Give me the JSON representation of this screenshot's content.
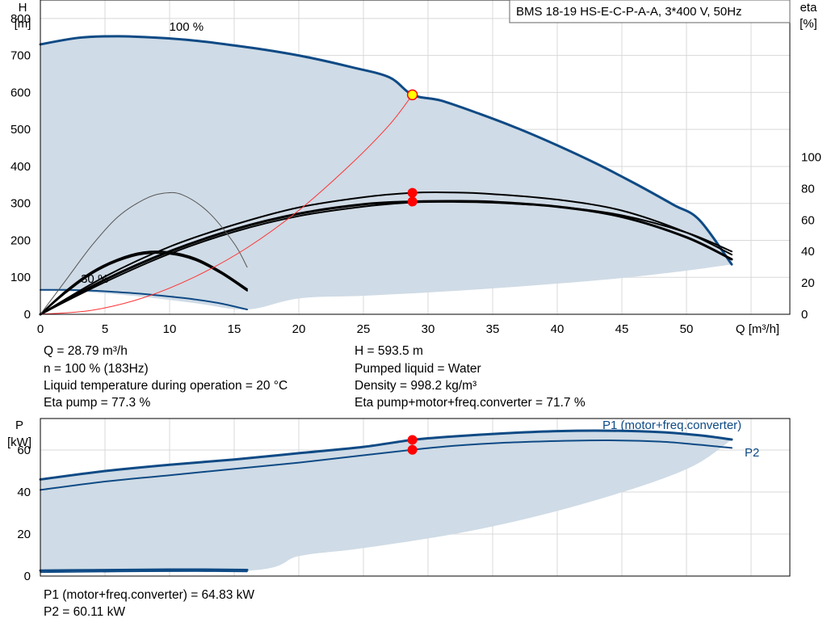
{
  "chart_data": {
    "type": "line",
    "title": "BMS 18-19 HS-E-C-P-A-A, 3*400 V, 50Hz",
    "colors": {
      "area": "#cfdbe6",
      "curve_blue": "#0e4a85",
      "curve_black": "#000000",
      "system_curve": "#ff3333",
      "marker": "#ff0000",
      "duty_point": "#ffff00",
      "grid": "#d8d8d8"
    },
    "head_plot": {
      "x_label": "Q [m³/h]",
      "y_label": "H",
      "y_unit": "[m]",
      "y2_label": "eta",
      "y2_unit": "[%]",
      "x_range": [
        0,
        58
      ],
      "y_range": [
        0,
        850
      ],
      "y2_range": [
        0,
        200
      ],
      "x_ticks": [
        "0",
        "5",
        "10",
        "15",
        "20",
        "25",
        "30",
        "35",
        "40",
        "45",
        "50"
      ],
      "y_ticks": [
        "0",
        "100",
        "200",
        "300",
        "400",
        "500",
        "600",
        "700",
        "800"
      ],
      "y2_ticks": [
        "0",
        "20",
        "40",
        "60",
        "80",
        "100"
      ],
      "curve_labels": [
        {
          "text": "100 %",
          "x": 11.3,
          "y": 767
        },
        {
          "text": "30 %",
          "x": 4.2,
          "y": 85
        }
      ],
      "envelope": {
        "upper": [
          [
            0,
            730
          ],
          [
            3,
            748
          ],
          [
            6,
            752
          ],
          [
            9,
            748
          ],
          [
            12,
            740
          ],
          [
            15,
            727
          ],
          [
            18,
            712
          ],
          [
            21,
            693
          ],
          [
            24,
            669
          ],
          [
            27,
            641
          ],
          [
            28.79,
            593.5
          ],
          [
            31,
            578
          ],
          [
            34,
            542
          ],
          [
            37,
            502
          ],
          [
            40,
            457
          ],
          [
            43,
            408
          ],
          [
            46,
            354
          ],
          [
            49,
            296
          ],
          [
            51,
            255
          ],
          [
            53.5,
            135
          ]
        ],
        "lower": [
          [
            53.5,
            135
          ],
          [
            50,
            118
          ],
          [
            45,
            98
          ],
          [
            40,
            83
          ],
          [
            35,
            70
          ],
          [
            30,
            59
          ],
          [
            25,
            50
          ],
          [
            20,
            43
          ],
          [
            16,
            13
          ],
          [
            12,
            30
          ],
          [
            8,
            47
          ],
          [
            4,
            59
          ],
          [
            0,
            64
          ]
        ]
      },
      "series": [
        {
          "name": "H 100 %",
          "axis": "left",
          "color": "#0e4a85",
          "width": 3,
          "points": [
            [
              0,
              730
            ],
            [
              3,
              748
            ],
            [
              6,
              752
            ],
            [
              9,
              748
            ],
            [
              12,
              740
            ],
            [
              15,
              727
            ],
            [
              18,
              712
            ],
            [
              21,
              693
            ],
            [
              24,
              669
            ],
            [
              27,
              641
            ],
            [
              28.79,
              593.5
            ],
            [
              31,
              578
            ],
            [
              34,
              542
            ],
            [
              37,
              502
            ],
            [
              40,
              457
            ],
            [
              43,
              408
            ],
            [
              46,
              354
            ],
            [
              49,
              296
            ],
            [
              51,
              255
            ],
            [
              53.5,
              135
            ]
          ]
        },
        {
          "name": "H 30 %",
          "axis": "left",
          "color": "#0e4a85",
          "width": 2,
          "points": [
            [
              0,
              66
            ],
            [
              2,
              66
            ],
            [
              4,
              64
            ],
            [
              6,
              60
            ],
            [
              8,
              55
            ],
            [
              10,
              48
            ],
            [
              12,
              40
            ],
            [
              14,
              29
            ],
            [
              16,
              13
            ]
          ]
        },
        {
          "name": "eta 100 % a",
          "axis": "right",
          "color": "#000000",
          "width": 2,
          "points": [
            [
              0,
              0
            ],
            [
              5,
              24
            ],
            [
              10,
              43
            ],
            [
              15,
              57
            ],
            [
              20,
              68
            ],
            [
              25,
              74.5
            ],
            [
              28.79,
              77.3
            ],
            [
              32,
              77.5
            ],
            [
              35,
              76.5
            ],
            [
              40,
              73
            ],
            [
              45,
              66
            ],
            [
              50,
              52
            ],
            [
              53.5,
              38
            ]
          ]
        },
        {
          "name": "eta 100 % b",
          "axis": "right",
          "color": "#000000",
          "width": 3,
          "points": [
            [
              0,
              0
            ],
            [
              5,
              22
            ],
            [
              10,
              40
            ],
            [
              15,
              54
            ],
            [
              20,
              64
            ],
            [
              25,
              70
            ],
            [
              28.79,
              71.7
            ],
            [
              32,
              72
            ],
            [
              35,
              71.5
            ],
            [
              40,
              68.5
            ],
            [
              45,
              62
            ],
            [
              50,
              49
            ],
            [
              53.5,
              35
            ]
          ]
        },
        {
          "name": "eta 100 % c",
          "axis": "right",
          "color": "#000000",
          "width": 2,
          "points": [
            [
              0,
              0
            ],
            [
              5,
              20.5
            ],
            [
              10,
              38.5
            ],
            [
              15,
              52.5
            ],
            [
              20,
              62.5
            ],
            [
              25,
              68.5
            ],
            [
              28.79,
              71.2
            ],
            [
              32,
              71.5
            ],
            [
              35,
              71
            ],
            [
              40,
              68.5
            ],
            [
              45,
              63
            ],
            [
              50,
              52
            ],
            [
              53.5,
              40
            ]
          ]
        },
        {
          "name": "eta 30 % a",
          "axis": "right",
          "color": "#000000",
          "width": 2,
          "points": [
            [
              0,
              0
            ],
            [
              2,
              15
            ],
            [
              4,
              27
            ],
            [
              6,
              35
            ],
            [
              8,
              39.5
            ],
            [
              10,
              39.5
            ],
            [
              12,
              35.5
            ],
            [
              14,
              27
            ],
            [
              16,
              16
            ]
          ]
        },
        {
          "name": "eta 30 % b",
          "axis": "right",
          "color": "#000000",
          "width": 2,
          "points": [
            [
              0,
              0
            ],
            [
              2,
              14
            ],
            [
              4,
              26
            ],
            [
              6,
              34
            ],
            [
              8,
              38.5
            ],
            [
              10,
              38.5
            ],
            [
              12,
              34.5
            ],
            [
              14,
              26
            ],
            [
              16,
              15
            ]
          ]
        },
        {
          "name": "eta 30 % thin",
          "axis": "right",
          "color": "#555555",
          "width": 1,
          "points": [
            [
              0,
              0
            ],
            [
              2,
              22
            ],
            [
              4,
              44
            ],
            [
              6,
              62
            ],
            [
              8,
              73
            ],
            [
              9.5,
              77
            ],
            [
              11,
              76
            ],
            [
              13,
              65
            ],
            [
              15,
              45
            ],
            [
              16,
              30
            ]
          ]
        },
        {
          "name": "system curve",
          "axis": "left",
          "color": "#ff3333",
          "width": 1,
          "points": [
            [
              0,
              0
            ],
            [
              4,
              11
            ],
            [
              8,
              45
            ],
            [
              12,
              102
            ],
            [
              16,
              180
            ],
            [
              20,
              281
            ],
            [
              24,
              405
            ],
            [
              27,
              512
            ],
            [
              28.79,
              593.5
            ]
          ]
        }
      ],
      "duty_point": {
        "x": 28.79,
        "y": 593.5
      },
      "markers_eta": [
        [
          28.79,
          77.3
        ],
        [
          28.79,
          71.7
        ]
      ]
    },
    "power_plot": {
      "y_label": "P",
      "y_unit": "[kW]",
      "x_range": [
        0,
        58
      ],
      "y_range": [
        0,
        75
      ],
      "y_ticks": [
        "0",
        "20",
        "40",
        "60"
      ],
      "envelope": {
        "upper": [
          [
            0,
            46
          ],
          [
            5,
            50
          ],
          [
            10,
            53
          ],
          [
            15,
            55.5
          ],
          [
            20,
            58.5
          ],
          [
            25,
            61.5
          ],
          [
            28.79,
            64.83
          ],
          [
            32,
            66.5
          ],
          [
            36,
            68
          ],
          [
            40,
            69
          ],
          [
            44,
            69.2
          ],
          [
            48,
            68.5
          ],
          [
            51,
            67
          ],
          [
            53.5,
            65
          ]
        ],
        "lower": [
          [
            53.5,
            65
          ],
          [
            51,
            54
          ],
          [
            48,
            46
          ],
          [
            44,
            38
          ],
          [
            40,
            31
          ],
          [
            36,
            25
          ],
          [
            32,
            20
          ],
          [
            28,
            16
          ],
          [
            24,
            12.5
          ],
          [
            20,
            9.5
          ],
          [
            16,
            2.5
          ],
          [
            0,
            2.5
          ]
        ]
      },
      "series": [
        {
          "name": "P1 (motor+freq.converter)",
          "color": "#0e4a85",
          "width": 3,
          "points": [
            [
              0,
              46
            ],
            [
              5,
              50
            ],
            [
              10,
              53
            ],
            [
              15,
              55.5
            ],
            [
              20,
              58.5
            ],
            [
              25,
              61.5
            ],
            [
              28.79,
              64.83
            ],
            [
              32,
              66.5
            ],
            [
              36,
              68
            ],
            [
              40,
              69
            ],
            [
              44,
              69.2
            ],
            [
              48,
              68.5
            ],
            [
              51,
              67
            ],
            [
              53.5,
              65
            ]
          ]
        },
        {
          "name": "P2",
          "color": "#0e4a85",
          "width": 2,
          "points": [
            [
              0,
              41
            ],
            [
              5,
              45
            ],
            [
              10,
              48
            ],
            [
              15,
              51
            ],
            [
              20,
              54
            ],
            [
              25,
              57.5
            ],
            [
              28.79,
              60.11
            ],
            [
              32,
              62
            ],
            [
              36,
              63.5
            ],
            [
              40,
              64.3
            ],
            [
              44,
              64.6
            ],
            [
              48,
              64
            ],
            [
              51,
              62.5
            ],
            [
              53.5,
              61
            ]
          ]
        },
        {
          "name": "P1 30 %",
          "color": "#0e4a85",
          "width": 3,
          "points": [
            [
              0,
              2.6
            ],
            [
              4,
              2.8
            ],
            [
              8,
              3
            ],
            [
              12,
              3.1
            ],
            [
              16,
              2.9
            ]
          ]
        },
        {
          "name": "P2 30 %",
          "color": "#0e4a85",
          "width": 1.5,
          "points": [
            [
              0,
              1.8
            ],
            [
              4,
              2
            ],
            [
              8,
              2.2
            ],
            [
              12,
              2.3
            ],
            [
              16,
              2.1
            ]
          ]
        }
      ],
      "labels": [
        {
          "text": "P1 (motor+freq.converter)",
          "x": 43.5,
          "y": 70
        },
        {
          "text": "P2",
          "x": 54.5,
          "y": 57
        }
      ],
      "markers": [
        [
          28.79,
          64.83
        ],
        [
          28.79,
          60.11
        ]
      ]
    }
  },
  "info": {
    "q": "Q = 28.79 m³/h",
    "n": "n = 100 % (183Hz)",
    "temp": "Liquid temperature during operation = 20 °C",
    "eta_pump": "Eta pump = 77.3 %",
    "h": "H = 593.5 m",
    "liquid": "Pumped liquid = Water",
    "density": "Density = 998.2 kg/m³",
    "eta_total": "Eta pump+motor+freq.converter = 71.7 %",
    "p1": "P1 (motor+freq.converter) = 64.83 kW",
    "p2": "P2 = 60.11 kW"
  }
}
